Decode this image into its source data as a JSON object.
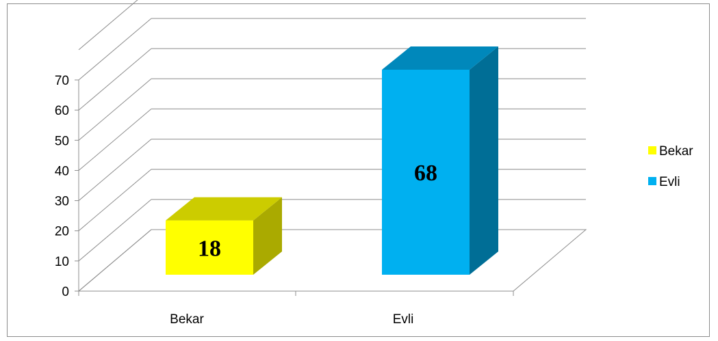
{
  "chart_data": {
    "type": "bar",
    "categories": [
      "Bekar",
      "Evli"
    ],
    "values": [
      18,
      68
    ],
    "data_labels": [
      "18",
      "68"
    ],
    "ylim": [
      0,
      70
    ],
    "yticks": [
      "0",
      "10",
      "20",
      "30",
      "40",
      "50",
      "60",
      "70"
    ],
    "grid": true,
    "legend_placement": "right",
    "legend": [
      "Bekar",
      "Evli"
    ],
    "colors": {
      "Bekar": {
        "front": "#ffff00",
        "top": "#cccc00",
        "side": "#aaaa00"
      },
      "Evli": {
        "front": "#00b0f0",
        "top": "#0088bb",
        "side": "#006e96"
      }
    },
    "title": "",
    "xlabel": "",
    "ylabel": ""
  }
}
